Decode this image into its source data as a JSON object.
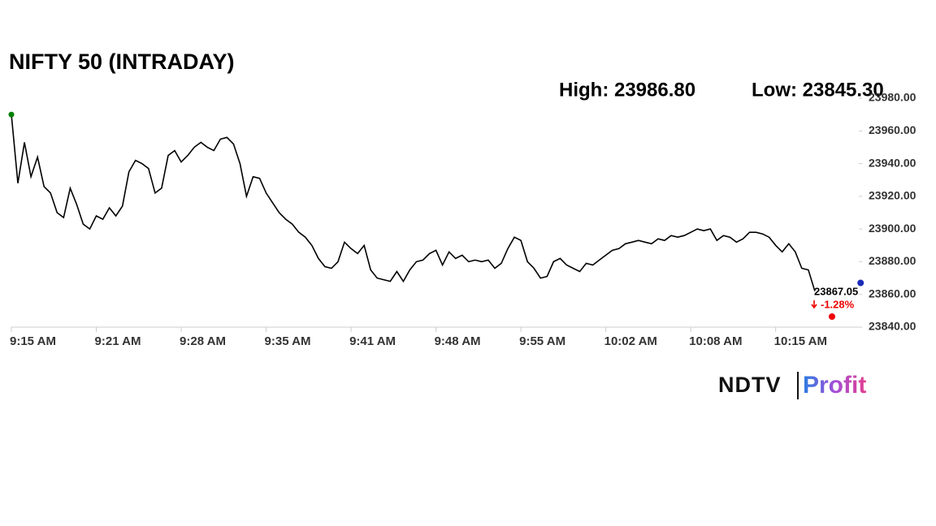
{
  "chart_data": {
    "type": "line",
    "title": "NIFTY 50 (INTRADAY)",
    "annotations": [
      "High: 23986.80",
      "Low: 23845.30",
      "-1.28%"
    ],
    "last": {
      "value": 23867.05,
      "label": "23867.05"
    },
    "categories": [
      "9:15 AM",
      null,
      null,
      null,
      null,
      null,
      null,
      null,
      null,
      null,
      null,
      null,
      null,
      "9:21 AM",
      null,
      null,
      null,
      null,
      null,
      null,
      null,
      null,
      null,
      null,
      null,
      null,
      "9:28 AM",
      null,
      null,
      null,
      null,
      null,
      null,
      null,
      null,
      null,
      null,
      null,
      null,
      "9:35 AM",
      null,
      null,
      null,
      null,
      null,
      null,
      null,
      null,
      null,
      null,
      null,
      null,
      "9:41 AM",
      null,
      null,
      null,
      null,
      null,
      null,
      null,
      null,
      null,
      null,
      null,
      null,
      "9:48 AM",
      null,
      null,
      null,
      null,
      null,
      null,
      null,
      null,
      null,
      null,
      null,
      null,
      "9:55 AM",
      null,
      null,
      null,
      null,
      null,
      null,
      null,
      null,
      null,
      null,
      null,
      null,
      "10:02 AM",
      null,
      null,
      null,
      null,
      null,
      null,
      null,
      null,
      null,
      null,
      null,
      null,
      "10:08 AM",
      null,
      null,
      null,
      null,
      null,
      null,
      null,
      null,
      null,
      null,
      null,
      null,
      "10:15 AM",
      null,
      null,
      null,
      null,
      null,
      null,
      null,
      null,
      null,
      null,
      null,
      null,
      null
    ],
    "series": [
      {
        "color": "#000000",
        "values": [
          23970,
          23928,
          23953,
          23932,
          23944,
          23926,
          23922,
          23910,
          23907,
          23925,
          23915,
          23903,
          23900,
          23908,
          23906,
          23913,
          23908,
          23914,
          23935,
          23942,
          23940,
          23937,
          23922,
          23925,
          23945,
          23948,
          23941,
          23945,
          23950,
          23953,
          23950,
          23948,
          23955,
          23956,
          23952,
          23940,
          23920,
          23932,
          23931,
          23922,
          23916,
          23910,
          23906,
          23903,
          23898,
          23895,
          23890,
          23882,
          23877,
          23876,
          23880,
          23892,
          23888,
          23885,
          23890,
          23875,
          23870,
          23869,
          23868,
          23874,
          23868,
          23875,
          23880,
          23881,
          23885,
          23887,
          23878,
          23886,
          23882,
          23884,
          23880,
          23881,
          23880,
          23881,
          23876,
          23879,
          23888,
          23895,
          23893,
          23880,
          23876,
          23870,
          23871,
          23880,
          23882,
          23878,
          23876,
          23874,
          23879,
          23878,
          23881,
          23884,
          23887,
          23888,
          23891,
          23892,
          23893,
          23892,
          23891,
          23894,
          23893,
          23896,
          23895,
          23896,
          23898,
          23900,
          23899,
          23900,
          23893,
          23896,
          23895,
          23892,
          23894,
          23898,
          23898,
          23897,
          23895,
          23890,
          23886,
          23891,
          23886,
          23876,
          23875,
          23862,
          null,
          null,
          null,
          null,
          null,
          null,
          null
        ]
      }
    ],
    "ylim": [
      23840,
      23980
    ],
    "yticks": [
      {
        "value": 23840,
        "label": "23840.00"
      },
      {
        "value": 23860,
        "label": "23860.00"
      },
      {
        "value": 23880,
        "label": "23880.00"
      },
      {
        "value": 23900,
        "label": "23900.00"
      },
      {
        "value": 23920,
        "label": "23920.00"
      },
      {
        "value": 23940,
        "label": "23940.00"
      },
      {
        "value": 23960,
        "label": "23960.00"
      },
      {
        "value": 23980,
        "label": "23980.00"
      }
    ]
  },
  "logo": {
    "brand": "NDTV",
    "product": "Profit"
  }
}
